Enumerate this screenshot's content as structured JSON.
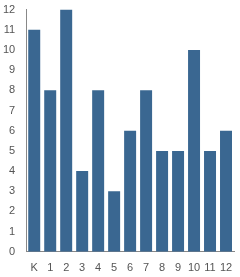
{
  "chart_data": {
    "type": "bar",
    "categories": [
      "K",
      "1",
      "2",
      "3",
      "4",
      "5",
      "6",
      "7",
      "8",
      "9",
      "10",
      "11",
      "12"
    ],
    "values": [
      11,
      8,
      12,
      4,
      8,
      3,
      6,
      8,
      5,
      5,
      10,
      5,
      6
    ],
    "color": "#3a6791",
    "ylim": [
      0,
      12
    ],
    "yticks": [
      0,
      1,
      2,
      3,
      4,
      5,
      6,
      7,
      8,
      9,
      10,
      11,
      12
    ],
    "grid": false
  }
}
